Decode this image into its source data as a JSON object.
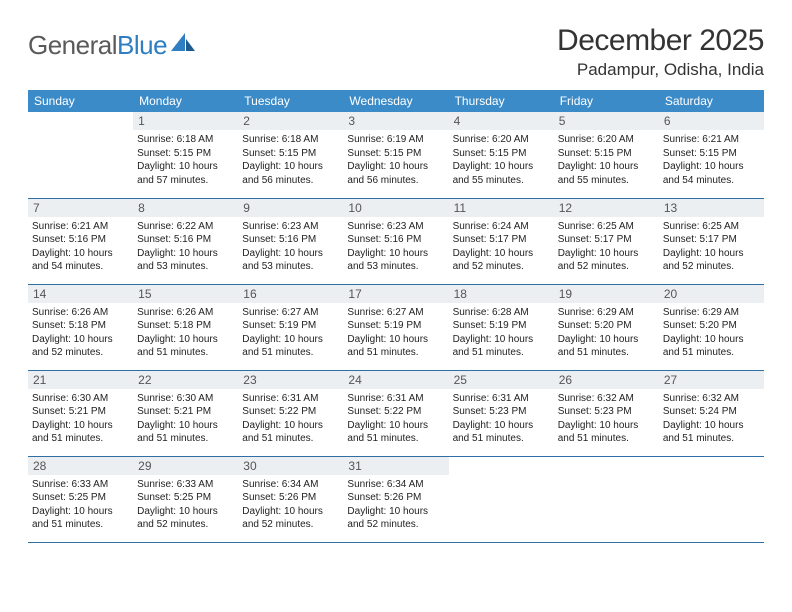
{
  "logo": {
    "text_gray": "General",
    "text_blue": "Blue"
  },
  "title": "December 2025",
  "location": "Padampur, Odisha, India",
  "colors": {
    "header_bg": "#3b8bc9",
    "header_text": "#ffffff",
    "daynum_bg": "#eceff1",
    "border": "#2f6fa5",
    "logo_gray": "#5a5a5a",
    "logo_blue": "#2f7ec2"
  },
  "daysOfWeek": [
    "Sunday",
    "Monday",
    "Tuesday",
    "Wednesday",
    "Thursday",
    "Friday",
    "Saturday"
  ],
  "weeks": [
    [
      {
        "day": "",
        "sunrise": "",
        "sunset": "",
        "daylight": ""
      },
      {
        "day": "1",
        "sunrise": "Sunrise: 6:18 AM",
        "sunset": "Sunset: 5:15 PM",
        "daylight": "Daylight: 10 hours and 57 minutes."
      },
      {
        "day": "2",
        "sunrise": "Sunrise: 6:18 AM",
        "sunset": "Sunset: 5:15 PM",
        "daylight": "Daylight: 10 hours and 56 minutes."
      },
      {
        "day": "3",
        "sunrise": "Sunrise: 6:19 AM",
        "sunset": "Sunset: 5:15 PM",
        "daylight": "Daylight: 10 hours and 56 minutes."
      },
      {
        "day": "4",
        "sunrise": "Sunrise: 6:20 AM",
        "sunset": "Sunset: 5:15 PM",
        "daylight": "Daylight: 10 hours and 55 minutes."
      },
      {
        "day": "5",
        "sunrise": "Sunrise: 6:20 AM",
        "sunset": "Sunset: 5:15 PM",
        "daylight": "Daylight: 10 hours and 55 minutes."
      },
      {
        "day": "6",
        "sunrise": "Sunrise: 6:21 AM",
        "sunset": "Sunset: 5:15 PM",
        "daylight": "Daylight: 10 hours and 54 minutes."
      }
    ],
    [
      {
        "day": "7",
        "sunrise": "Sunrise: 6:21 AM",
        "sunset": "Sunset: 5:16 PM",
        "daylight": "Daylight: 10 hours and 54 minutes."
      },
      {
        "day": "8",
        "sunrise": "Sunrise: 6:22 AM",
        "sunset": "Sunset: 5:16 PM",
        "daylight": "Daylight: 10 hours and 53 minutes."
      },
      {
        "day": "9",
        "sunrise": "Sunrise: 6:23 AM",
        "sunset": "Sunset: 5:16 PM",
        "daylight": "Daylight: 10 hours and 53 minutes."
      },
      {
        "day": "10",
        "sunrise": "Sunrise: 6:23 AM",
        "sunset": "Sunset: 5:16 PM",
        "daylight": "Daylight: 10 hours and 53 minutes."
      },
      {
        "day": "11",
        "sunrise": "Sunrise: 6:24 AM",
        "sunset": "Sunset: 5:17 PM",
        "daylight": "Daylight: 10 hours and 52 minutes."
      },
      {
        "day": "12",
        "sunrise": "Sunrise: 6:25 AM",
        "sunset": "Sunset: 5:17 PM",
        "daylight": "Daylight: 10 hours and 52 minutes."
      },
      {
        "day": "13",
        "sunrise": "Sunrise: 6:25 AM",
        "sunset": "Sunset: 5:17 PM",
        "daylight": "Daylight: 10 hours and 52 minutes."
      }
    ],
    [
      {
        "day": "14",
        "sunrise": "Sunrise: 6:26 AM",
        "sunset": "Sunset: 5:18 PM",
        "daylight": "Daylight: 10 hours and 52 minutes."
      },
      {
        "day": "15",
        "sunrise": "Sunrise: 6:26 AM",
        "sunset": "Sunset: 5:18 PM",
        "daylight": "Daylight: 10 hours and 51 minutes."
      },
      {
        "day": "16",
        "sunrise": "Sunrise: 6:27 AM",
        "sunset": "Sunset: 5:19 PM",
        "daylight": "Daylight: 10 hours and 51 minutes."
      },
      {
        "day": "17",
        "sunrise": "Sunrise: 6:27 AM",
        "sunset": "Sunset: 5:19 PM",
        "daylight": "Daylight: 10 hours and 51 minutes."
      },
      {
        "day": "18",
        "sunrise": "Sunrise: 6:28 AM",
        "sunset": "Sunset: 5:19 PM",
        "daylight": "Daylight: 10 hours and 51 minutes."
      },
      {
        "day": "19",
        "sunrise": "Sunrise: 6:29 AM",
        "sunset": "Sunset: 5:20 PM",
        "daylight": "Daylight: 10 hours and 51 minutes."
      },
      {
        "day": "20",
        "sunrise": "Sunrise: 6:29 AM",
        "sunset": "Sunset: 5:20 PM",
        "daylight": "Daylight: 10 hours and 51 minutes."
      }
    ],
    [
      {
        "day": "21",
        "sunrise": "Sunrise: 6:30 AM",
        "sunset": "Sunset: 5:21 PM",
        "daylight": "Daylight: 10 hours and 51 minutes."
      },
      {
        "day": "22",
        "sunrise": "Sunrise: 6:30 AM",
        "sunset": "Sunset: 5:21 PM",
        "daylight": "Daylight: 10 hours and 51 minutes."
      },
      {
        "day": "23",
        "sunrise": "Sunrise: 6:31 AM",
        "sunset": "Sunset: 5:22 PM",
        "daylight": "Daylight: 10 hours and 51 minutes."
      },
      {
        "day": "24",
        "sunrise": "Sunrise: 6:31 AM",
        "sunset": "Sunset: 5:22 PM",
        "daylight": "Daylight: 10 hours and 51 minutes."
      },
      {
        "day": "25",
        "sunrise": "Sunrise: 6:31 AM",
        "sunset": "Sunset: 5:23 PM",
        "daylight": "Daylight: 10 hours and 51 minutes."
      },
      {
        "day": "26",
        "sunrise": "Sunrise: 6:32 AM",
        "sunset": "Sunset: 5:23 PM",
        "daylight": "Daylight: 10 hours and 51 minutes."
      },
      {
        "day": "27",
        "sunrise": "Sunrise: 6:32 AM",
        "sunset": "Sunset: 5:24 PM",
        "daylight": "Daylight: 10 hours and 51 minutes."
      }
    ],
    [
      {
        "day": "28",
        "sunrise": "Sunrise: 6:33 AM",
        "sunset": "Sunset: 5:25 PM",
        "daylight": "Daylight: 10 hours and 51 minutes."
      },
      {
        "day": "29",
        "sunrise": "Sunrise: 6:33 AM",
        "sunset": "Sunset: 5:25 PM",
        "daylight": "Daylight: 10 hours and 52 minutes."
      },
      {
        "day": "30",
        "sunrise": "Sunrise: 6:34 AM",
        "sunset": "Sunset: 5:26 PM",
        "daylight": "Daylight: 10 hours and 52 minutes."
      },
      {
        "day": "31",
        "sunrise": "Sunrise: 6:34 AM",
        "sunset": "Sunset: 5:26 PM",
        "daylight": "Daylight: 10 hours and 52 minutes."
      },
      {
        "day": "",
        "sunrise": "",
        "sunset": "",
        "daylight": ""
      },
      {
        "day": "",
        "sunrise": "",
        "sunset": "",
        "daylight": ""
      },
      {
        "day": "",
        "sunrise": "",
        "sunset": "",
        "daylight": ""
      }
    ]
  ]
}
